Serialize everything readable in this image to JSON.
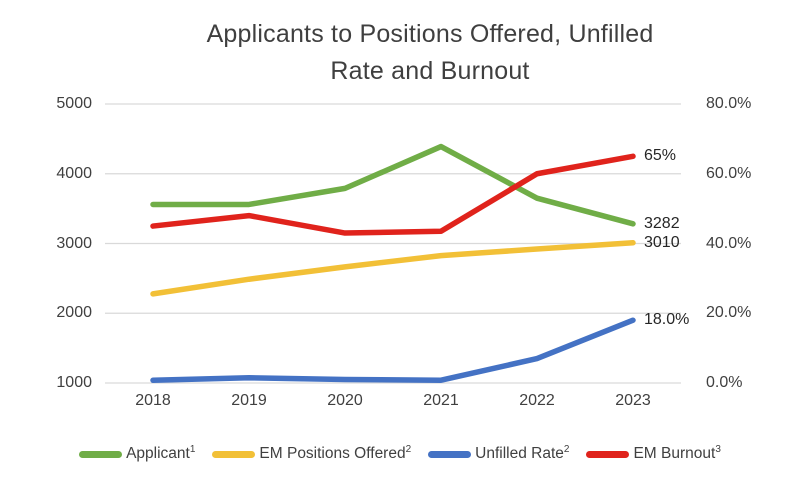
{
  "chart_data": {
    "type": "line",
    "title": "Applicants to Positions Offered, Unfilled Rate and Burnout",
    "title_lines": [
      "Applicants to Positions Offered, Unfilled",
      "Rate and Burnout"
    ],
    "categories": [
      "2018",
      "2019",
      "2020",
      "2021",
      "2022",
      "2023"
    ],
    "left_axis": {
      "min": 1000,
      "max": 5000,
      "step": 1000,
      "tick_labels": [
        "5000",
        "4000",
        "3000",
        "2000",
        "1000"
      ]
    },
    "right_axis": {
      "min": 0,
      "max": 80,
      "step": 20,
      "tick_labels": [
        "80.0%",
        "60.0%",
        "40.0%",
        "20.0%",
        "0.0%"
      ]
    },
    "grid": true,
    "legend_position": "bottom",
    "series": [
      {
        "name": "Applicant",
        "superscript": "1",
        "color": "#70AD47",
        "axis": "left",
        "values": [
          3560,
          3560,
          3790,
          4390,
          3650,
          3282
        ],
        "end_label": "3282"
      },
      {
        "name": "EM Positions Offered",
        "superscript": "2",
        "color": "#F2C037",
        "axis": "left",
        "values": [
          2278,
          2488,
          2665,
          2826,
          2921,
          3010
        ],
        "end_label": "3010"
      },
      {
        "name": "Unfilled Rate",
        "superscript": "2",
        "color": "#4472C4",
        "axis": "right",
        "values": [
          0.8,
          1.5,
          1.0,
          0.8,
          7.0,
          18.0
        ],
        "end_label": "18.0%"
      },
      {
        "name": "EM Burnout",
        "superscript": "3",
        "color": "#E0231C",
        "axis": "right",
        "values": [
          45,
          48,
          43,
          43.5,
          60,
          65
        ],
        "end_label": "65%"
      }
    ]
  }
}
